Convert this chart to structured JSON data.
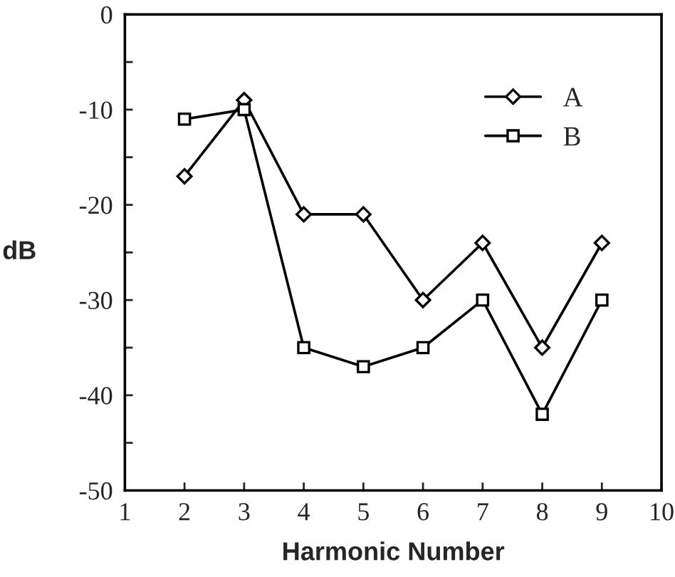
{
  "chart_data": {
    "type": "line",
    "xlabel": "Harmonic Number",
    "ylabel": "dB",
    "x": [
      2,
      3,
      4,
      5,
      6,
      7,
      8,
      9
    ],
    "series": [
      {
        "name": "A",
        "color": "#000000",
        "marker": "diamond",
        "values": [
          -17,
          -9,
          -21,
          -21,
          -30,
          -24,
          -35,
          -24
        ]
      },
      {
        "name": "B",
        "color": "#000000",
        "marker": "square",
        "values": [
          -11,
          -10,
          -35,
          -37,
          -35,
          -30,
          -42,
          -30
        ]
      }
    ],
    "xlim": [
      1,
      10
    ],
    "xticks": [
      1,
      2,
      3,
      4,
      5,
      6,
      7,
      8,
      9,
      10
    ],
    "ylim": [
      -50,
      0
    ],
    "yticks": [
      -50,
      {
        "value": -45,
        "label": null
      },
      -40,
      {
        "value": -35,
        "label": null
      },
      -30,
      {
        "value": -25,
        "label": null
      },
      -20,
      {
        "value": -15,
        "label": null
      },
      -10,
      {
        "value": -5,
        "label": null
      },
      0
    ],
    "legend": "top right",
    "grid": false,
    "line_style": "solid"
  }
}
